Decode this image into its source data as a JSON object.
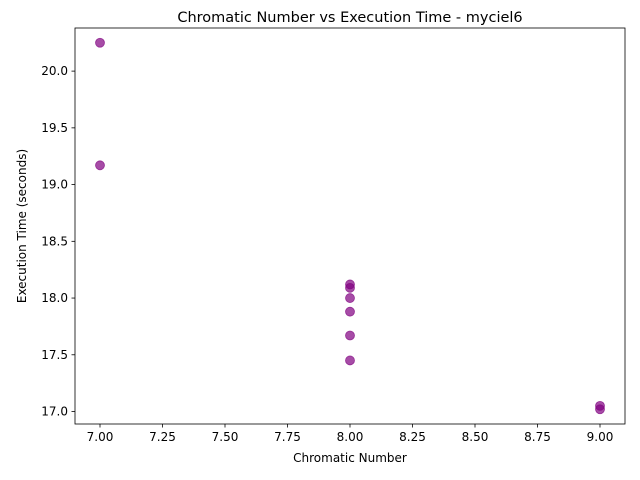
{
  "chart_data": {
    "type": "scatter",
    "title": "Chromatic Number vs Execution Time - myciel6",
    "xlabel": "Chromatic Number",
    "ylabel": "Execution Time (seconds)",
    "xlim": [
      6.9,
      9.1
    ],
    "ylim": [
      16.89,
      20.38
    ],
    "xticks": [
      7.0,
      7.25,
      7.5,
      7.75,
      8.0,
      8.25,
      8.5,
      8.75,
      9.0
    ],
    "xtick_labels": [
      "7.00",
      "7.25",
      "7.50",
      "7.75",
      "8.00",
      "8.25",
      "8.50",
      "8.75",
      "9.00"
    ],
    "yticks": [
      17.0,
      17.5,
      18.0,
      18.5,
      19.0,
      19.5,
      20.0
    ],
    "ytick_labels": [
      "17.0",
      "17.5",
      "18.0",
      "18.5",
      "19.0",
      "19.5",
      "20.0"
    ],
    "grid": false,
    "point_color": "#800080",
    "point_alpha": 0.7,
    "points": [
      {
        "x": 7,
        "y": 20.25
      },
      {
        "x": 7,
        "y": 19.17
      },
      {
        "x": 8,
        "y": 18.12
      },
      {
        "x": 8,
        "y": 18.09
      },
      {
        "x": 8,
        "y": 18.0
      },
      {
        "x": 8,
        "y": 17.88
      },
      {
        "x": 8,
        "y": 17.67
      },
      {
        "x": 8,
        "y": 17.45
      },
      {
        "x": 9,
        "y": 17.05
      },
      {
        "x": 9,
        "y": 17.02
      }
    ]
  }
}
